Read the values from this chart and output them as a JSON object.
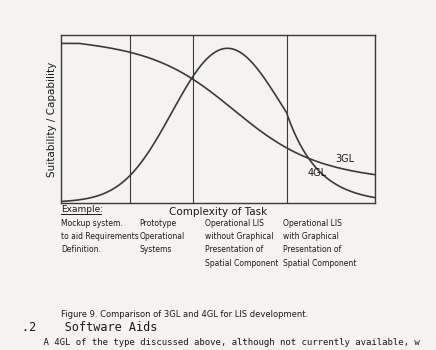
{
  "title": "Figure 9. Comparison of 3GL and 4GL for LIS development.",
  "xlabel": "Complexity of Task",
  "ylabel": "Suitability / Capability",
  "label_3gl": "3GL",
  "label_4gl": "4GL",
  "vlines": [
    0.22,
    0.42,
    0.72
  ],
  "example_label": "Example:",
  "col1_lines": [
    "Mockup system.",
    "to aid Requirements",
    "Definition."
  ],
  "col2_lines": [
    "Prototype",
    "Operational",
    "Systems"
  ],
  "col3_lines": [
    "Operational LIS",
    "without Graphical",
    "Presentation of",
    "Spatial Component"
  ],
  "col4_lines": [
    "Operational LIS",
    "with Graphical",
    "Presentation of",
    "Spatial Component"
  ],
  "background_color": "#f5f3f0",
  "curve_color": "#3a3a3a",
  "text_color": "#1a1a1a",
  "fig_width": 4.36,
  "fig_height": 3.5,
  "dpi": 100
}
